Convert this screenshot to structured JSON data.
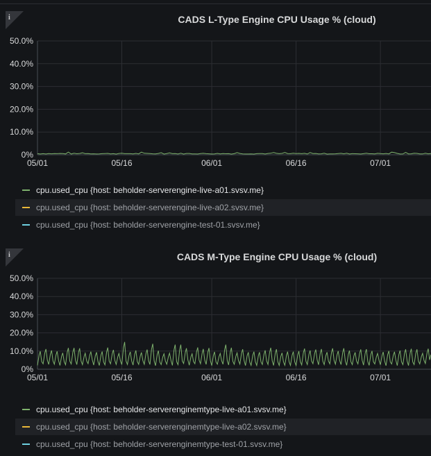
{
  "colors": {
    "grid": "#2c2e33",
    "axis": "#d8d9da",
    "series": [
      "#7eb26d",
      "#eab839",
      "#6ed0e0"
    ]
  },
  "panels": [
    {
      "title": "CADS L-Type Engine CPU Usage % (cloud)",
      "info_icon": "info-icon",
      "legend": [
        {
          "label": "cpu.used_cpu {host: beholder-serverengine-live-a01.svsv.me}",
          "color": "#7eb26d",
          "active": true,
          "highlighted": false
        },
        {
          "label": "cpu.used_cpu {host: beholder-serverengine-live-a02.svsv.me}",
          "color": "#eab839",
          "active": false,
          "highlighted": true
        },
        {
          "label": "cpu.used_cpu {host: beholder-serverengine-test-01.svsv.me}",
          "color": "#6ed0e0",
          "active": false,
          "highlighted": false
        }
      ]
    },
    {
      "title": "CADS M-Type Engine CPU Usage % (cloud)",
      "info_icon": "info-icon",
      "legend": [
        {
          "label": "cpu.used_cpu {host: beholder-serverenginemtype-live-a01.svsv.me}",
          "color": "#7eb26d",
          "active": true,
          "highlighted": false
        },
        {
          "label": "cpu.used_cpu {host: beholder-serverenginemtype-live-a02.svsv.me}",
          "color": "#eab839",
          "active": false,
          "highlighted": true
        },
        {
          "label": "cpu.used_cpu {host: beholder-serverenginemtype-test-01.svsv.me}",
          "color": "#6ed0e0",
          "active": false,
          "highlighted": false
        }
      ]
    }
  ],
  "chart_data": [
    {
      "type": "line",
      "title": "CADS L-Type Engine CPU Usage % (cloud)",
      "x_tick_labels": [
        "05/01",
        "05/16",
        "06/01",
        "06/16",
        "07/01"
      ],
      "y_tick_labels": [
        "50.0%",
        "40.0%",
        "30.0%",
        "20.0%",
        "10.0%",
        "0%"
      ],
      "ylim": [
        0,
        50
      ],
      "xlim_days": [
        0,
        70
      ],
      "x_tick_days": [
        0,
        15,
        31,
        46,
        61
      ],
      "grid": true,
      "legend_position": "bottom",
      "series": [
        {
          "name": "cpu.used_cpu {host: beholder-serverengine-live-a01.svsv.me}",
          "color": "#7eb26d",
          "pattern": "flat",
          "base": 0.5,
          "noise": 0.4
        }
      ]
    },
    {
      "type": "line",
      "title": "CADS M-Type Engine CPU Usage % (cloud)",
      "x_tick_labels": [
        "05/01",
        "05/16",
        "06/01",
        "06/16",
        "07/01"
      ],
      "y_tick_labels": [
        "50.0%",
        "40.0%",
        "30.0%",
        "20.0%",
        "10.0%",
        "0%"
      ],
      "ylim": [
        0,
        50
      ],
      "xlim_days": [
        0,
        70
      ],
      "x_tick_days": [
        0,
        15,
        31,
        46,
        61
      ],
      "grid": true,
      "legend_position": "bottom",
      "series": [
        {
          "name": "cpu.used_cpu {host: beholder-serverenginemtype-live-a01.svsv.me}",
          "color": "#7eb26d",
          "pattern": "daily",
          "low": 2,
          "high": 10.5,
          "spikes": [
            [
              15,
              15
            ],
            [
              20,
              14
            ],
            [
              24.5,
              13.5
            ],
            [
              33,
              13.5
            ],
            [
              42,
              11
            ],
            [
              52,
              11.5
            ],
            [
              65,
              11
            ]
          ]
        }
      ]
    }
  ]
}
